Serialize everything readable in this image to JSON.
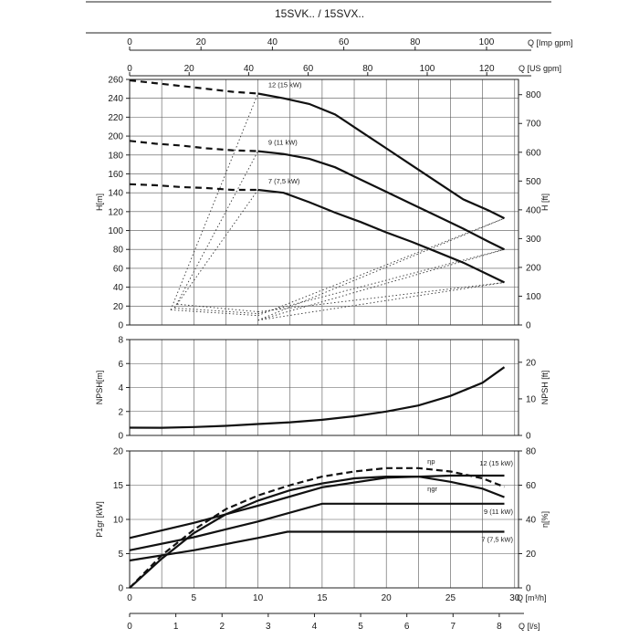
{
  "title": "15SVK.. / 15SVX..",
  "top_axes": {
    "imp_gpm": {
      "label": "Q [Imp gpm]",
      "ticks": [
        "0",
        "20",
        "40",
        "60",
        "80",
        "100"
      ]
    },
    "us_gpm": {
      "label": "Q [US gpm]",
      "ticks": [
        "0",
        "20",
        "40",
        "60",
        "80",
        "100",
        "120"
      ]
    }
  },
  "bottom_axes": {
    "m3h": {
      "label": "Q [m³/h]",
      "ticks": [
        "0",
        "5",
        "10",
        "15",
        "20",
        "25",
        "30"
      ]
    },
    "ls": {
      "label": "Q [l/s]",
      "ticks": [
        "0",
        "1",
        "2",
        "3",
        "4",
        "5",
        "6",
        "7",
        "8"
      ]
    }
  },
  "chart_data": [
    {
      "type": "line",
      "name": "H",
      "xlabel": "Q [m³/h]",
      "ylabel": "H[m]",
      "y2label": "H [ft]",
      "xlim": [
        0,
        30
      ],
      "ylim": [
        0,
        260
      ],
      "y_ticks": [
        "0",
        "20",
        "40",
        "60",
        "80",
        "100",
        "120",
        "140",
        "160",
        "180",
        "200",
        "220",
        "240",
        "260"
      ],
      "y2_ticks": [
        "0",
        "100",
        "200",
        "300",
        "400",
        "500",
        "600",
        "700",
        "800"
      ],
      "grid": true,
      "series": [
        {
          "name": "12 (15 kW)",
          "dashed": {
            "x": [
              0,
              2,
              4,
              6,
              8,
              10
            ],
            "y": [
              259,
              256,
              253,
              250,
              247,
              245
            ]
          },
          "x": [
            10,
            12,
            14,
            16,
            18,
            20,
            22,
            24,
            26,
            28,
            29.2
          ],
          "y": [
            245,
            240,
            234,
            223,
            205,
            187,
            169,
            151,
            133,
            121,
            113
          ]
        },
        {
          "name": "9 (11 kW)",
          "dashed": {
            "x": [
              0,
              2,
              4,
              6,
              8,
              10
            ],
            "y": [
              195,
              192,
              190,
              187,
              185,
              184
            ]
          },
          "x": [
            10,
            12,
            14,
            16,
            18,
            20,
            22,
            24,
            26,
            28,
            29.2
          ],
          "y": [
            184,
            181,
            176,
            167,
            154,
            141,
            128,
            115,
            102,
            88,
            80
          ]
        },
        {
          "name": "7 (7,5 kW)",
          "dashed": {
            "x": [
              0,
              2,
              4,
              6,
              8,
              10
            ],
            "y": [
              149,
              148,
              146,
              145,
              143,
              143
            ]
          },
          "x": [
            10,
            12,
            14,
            16,
            18,
            20,
            22,
            24,
            26,
            28,
            29.2
          ],
          "y": [
            143,
            140,
            130,
            119,
            109,
            98,
            88,
            77,
            66,
            53,
            45
          ]
        }
      ]
    },
    {
      "type": "line",
      "name": "NPSH",
      "xlabel": "Q [m³/h]",
      "ylabel": "NPSH[m]",
      "y2label": "NPSH [ft]",
      "xlim": [
        0,
        30
      ],
      "ylim": [
        0,
        8
      ],
      "y_ticks": [
        "0",
        "2",
        "4",
        "6",
        "8"
      ],
      "y2_ticks": [
        "0",
        "10",
        "20"
      ],
      "grid": true,
      "series": [
        {
          "x": [
            0,
            2.5,
            5,
            7.5,
            10,
            12.5,
            15,
            17.5,
            20,
            22.5,
            25,
            27.5,
            29.2
          ],
          "y": [
            0.65,
            0.64,
            0.7,
            0.8,
            0.95,
            1.1,
            1.3,
            1.6,
            2.0,
            2.5,
            3.3,
            4.4,
            5.7
          ]
        }
      ]
    },
    {
      "type": "line",
      "name": "P1gr / eta",
      "xlabel": "Q [m³/h]",
      "ylabel": "P1gr [kW]",
      "y2label": "η[%]",
      "xlim": [
        0,
        30
      ],
      "ylim": [
        0,
        20
      ],
      "y_ticks": [
        "0",
        "5",
        "10",
        "15",
        "20"
      ],
      "y2_ticks": [
        "0",
        "20",
        "40",
        "60",
        "80"
      ],
      "grid": true,
      "series": [
        {
          "name": "12 (15 kW)",
          "x": [
            0,
            5,
            10,
            15,
            20,
            25,
            29.2
          ],
          "y": [
            7.3,
            9.5,
            12,
            14.7,
            16.1,
            16.4,
            16.4
          ]
        },
        {
          "name": "9 (11 kW)",
          "x": [
            0,
            5,
            10,
            15,
            20,
            25,
            29.2
          ],
          "y": [
            5.5,
            7.4,
            9.7,
            12.3,
            12.3,
            12.3,
            12.3
          ]
        },
        {
          "name": "7 (7,5 kW)",
          "x": [
            0,
            5,
            10,
            12.3,
            15,
            20,
            25,
            29.2
          ],
          "y": [
            4.0,
            5.5,
            7.3,
            8.2,
            8.2,
            8.2,
            8.2,
            8.2
          ]
        },
        {
          "name": "η_p",
          "x": [
            0,
            2.5,
            5,
            7.5,
            10,
            12.5,
            15,
            17.5,
            20,
            22.5,
            25,
            27.5,
            29.2
          ],
          "y": [
            0,
            19,
            34,
            46,
            54,
            60,
            65,
            68,
            70,
            70,
            68,
            64,
            59
          ]
        },
        {
          "name": "η_gr",
          "x": [
            0,
            2.5,
            5,
            7.5,
            10,
            12.5,
            15,
            17.5,
            20,
            22.5,
            25,
            27.5,
            29.2
          ],
          "y": [
            0,
            17,
            32,
            43,
            51,
            57,
            61,
            64,
            65,
            65,
            62,
            58,
            53
          ]
        }
      ]
    }
  ]
}
